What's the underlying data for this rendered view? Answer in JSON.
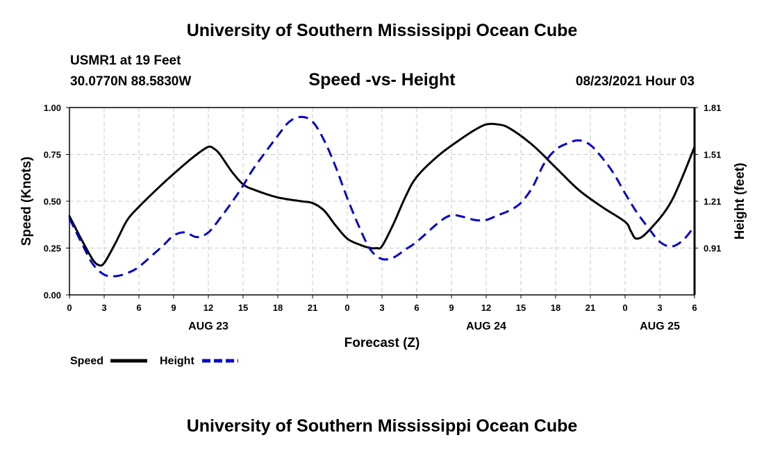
{
  "page": {
    "top_title": "University of Southern Mississippi Ocean Cube",
    "bottom_title": "University of Southern Mississippi Ocean Cube",
    "station": "USMR1 at 19 Feet",
    "coords": "30.0770N  88.5830W",
    "chart_title": "Speed -vs- Height",
    "run_time": "08/23/2021 Hour 03"
  },
  "chart_data": {
    "type": "line",
    "title": "Speed -vs- Height",
    "xlabel": "Forecast (Z)",
    "ylabel": "Speed (Knots)",
    "y2label": "Height (feet)",
    "x_unit": "hours from 00Z Aug 23",
    "xlim": [
      0,
      54
    ],
    "ylim": [
      0,
      1.0
    ],
    "y2lim": [
      0.61,
      1.81
    ],
    "x_tick_positions": [
      0,
      3,
      6,
      9,
      12,
      15,
      18,
      21,
      24,
      27,
      30,
      33,
      36,
      39,
      42,
      45,
      48,
      51,
      54
    ],
    "x_tick_labels": [
      "0",
      "3",
      "6",
      "9",
      "12",
      "15",
      "18",
      "21",
      "0",
      "3",
      "6",
      "9",
      "12",
      "15",
      "18",
      "21",
      "0",
      "3",
      "6"
    ],
    "date_labels": [
      {
        "x": 12,
        "label": "AUG 23"
      },
      {
        "x": 36,
        "label": "AUG 24"
      },
      {
        "x": 51,
        "label": "AUG 25"
      }
    ],
    "y_ticks": [
      0.0,
      0.25,
      0.5,
      0.75,
      1.0
    ],
    "y_tick_labels": [
      "0.00",
      "0.25",
      "0.50",
      "0.75",
      "1.00"
    ],
    "y2_ticks": [
      0.91,
      1.21,
      1.51,
      1.81
    ],
    "y2_tick_labels": [
      "0.91",
      "1.21",
      "1.51",
      "1.81"
    ],
    "grid": true,
    "legend": "bottom-left",
    "series": [
      {
        "name": "Speed",
        "axis": "left",
        "color": "#000000",
        "style": "solid",
        "x": [
          0,
          1,
          2,
          2.5,
          3,
          4,
          5,
          6,
          8,
          10,
          11,
          12,
          12.5,
          13,
          14,
          15,
          16,
          18,
          20,
          21,
          22,
          23,
          24,
          25,
          26,
          26.5,
          27,
          28,
          29,
          30,
          32,
          34,
          35,
          36,
          37,
          38,
          40,
          42,
          44,
          46,
          48,
          48.5,
          49,
          50,
          52,
          54
        ],
        "values": [
          0.42,
          0.3,
          0.19,
          0.16,
          0.17,
          0.28,
          0.4,
          0.47,
          0.59,
          0.7,
          0.75,
          0.79,
          0.78,
          0.75,
          0.66,
          0.59,
          0.56,
          0.52,
          0.5,
          0.49,
          0.45,
          0.37,
          0.3,
          0.27,
          0.25,
          0.25,
          0.26,
          0.38,
          0.52,
          0.63,
          0.75,
          0.84,
          0.88,
          0.91,
          0.91,
          0.89,
          0.8,
          0.68,
          0.56,
          0.47,
          0.39,
          0.34,
          0.3,
          0.34,
          0.5,
          0.79
        ]
      },
      {
        "name": "Height",
        "axis": "right",
        "color": "#0000cc",
        "style": "dashed",
        "x": [
          0,
          1,
          2,
          3,
          4,
          5,
          6,
          8,
          9,
          10,
          11,
          12,
          13,
          14,
          15,
          16,
          18,
          19,
          20,
          21,
          22,
          23,
          24,
          25,
          26,
          27,
          28,
          29,
          30,
          32,
          33,
          34,
          35,
          36,
          37,
          38,
          39,
          40,
          41,
          42,
          43,
          44,
          45,
          46,
          47,
          48,
          49,
          50,
          51,
          52,
          53,
          54
        ],
        "values": [
          1.1,
          0.95,
          0.81,
          0.74,
          0.73,
          0.75,
          0.79,
          0.92,
          0.99,
          1.01,
          0.98,
          1.01,
          1.1,
          1.2,
          1.31,
          1.43,
          1.63,
          1.72,
          1.75,
          1.72,
          1.6,
          1.43,
          1.23,
          1.05,
          0.9,
          0.84,
          0.85,
          0.9,
          0.95,
          1.08,
          1.12,
          1.11,
          1.09,
          1.09,
          1.12,
          1.15,
          1.2,
          1.3,
          1.45,
          1.54,
          1.58,
          1.6,
          1.57,
          1.49,
          1.39,
          1.26,
          1.14,
          1.04,
          0.95,
          0.92,
          0.96,
          1.05
        ]
      }
    ]
  }
}
